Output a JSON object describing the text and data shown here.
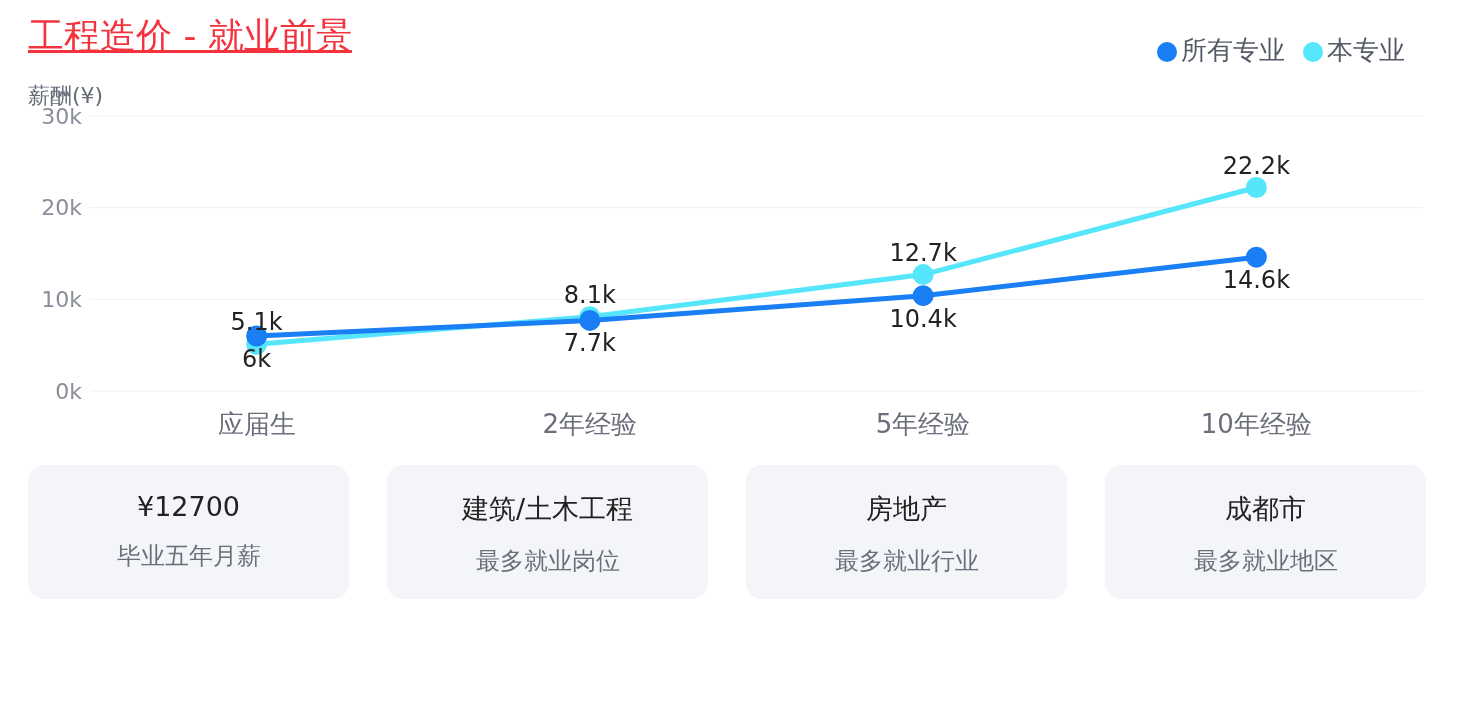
{
  "chart_data": [
    {
      "type": "line",
      "title": "工程造价 - 就业前景",
      "ylabel": "薪酬(¥)",
      "categories": [
        "应届生",
        "2年经验",
        "5年经验",
        "10年经验"
      ],
      "series": [
        {
          "name": "本专业",
          "color": "#55e6fb",
          "values": [
            5.1,
            8.1,
            12.7,
            22.2
          ],
          "value_labels": [
            "5.1k",
            "8.1k",
            "12.7k",
            "22.2k"
          ]
        },
        {
          "name": "所有专业",
          "color": "#1a7ef5",
          "values": [
            6,
            7.7,
            10.4,
            14.6
          ],
          "value_labels": [
            "6k",
            "7.7k",
            "10.4k",
            "14.6k"
          ]
        }
      ],
      "ylim": [
        0,
        30
      ],
      "yticks": [
        {
          "value": 0,
          "label": "0k"
        },
        {
          "value": 10,
          "label": "10k"
        },
        {
          "value": 20,
          "label": "20k"
        },
        {
          "value": 30,
          "label": "30k"
        }
      ],
      "grid": "y",
      "legend": "top right",
      "marker": "circle",
      "line_style": "solid"
    },
    {
      "type": "other",
      "annotations": [
        "¥12700",
        "毕业五年月薪",
        "建筑/土木工程",
        "最多就业岗位",
        "房地产",
        "最多就业行业",
        "成都市",
        "最多就业地区"
      ]
    }
  ]
}
